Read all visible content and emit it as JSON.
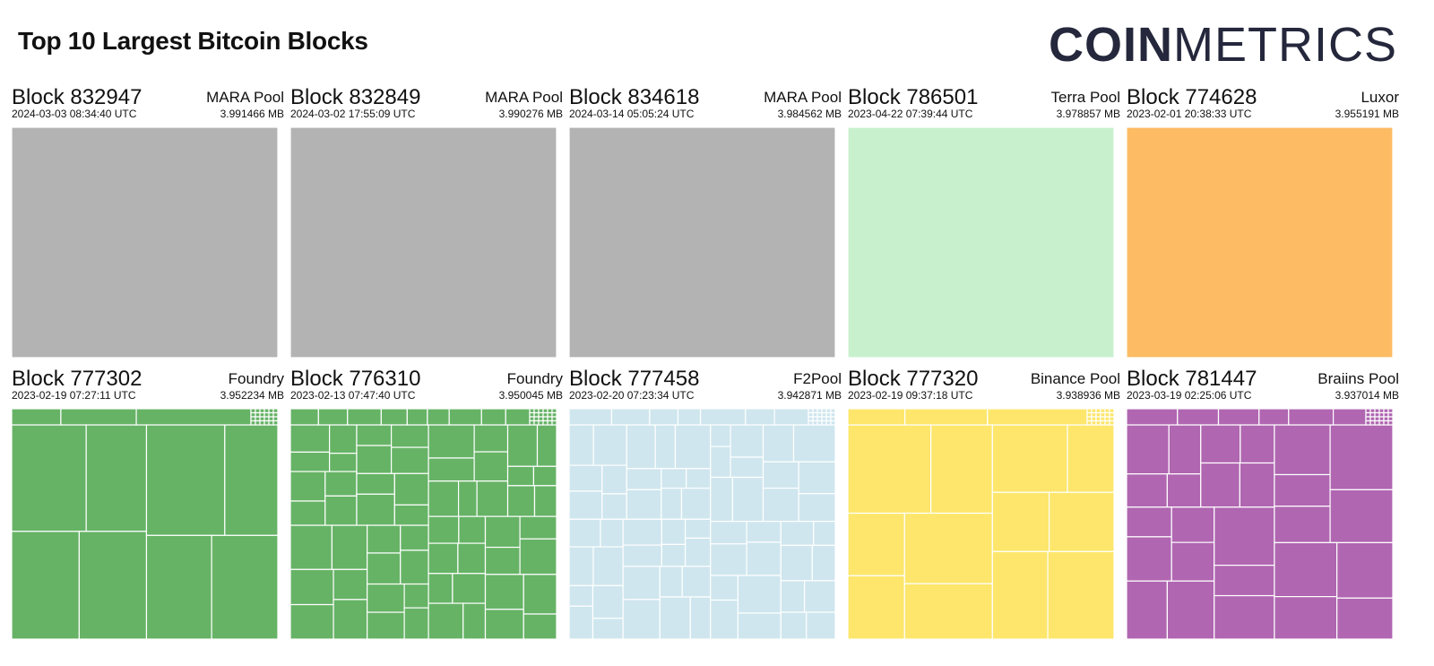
{
  "header": {
    "title": "Top 10 Largest Bitcoin Blocks",
    "logo_bold": "COIN",
    "logo_light": "METRICS"
  },
  "chart_data": {
    "type": "treemap",
    "title": "Top 10 Largest Bitcoin Blocks",
    "blocks": [
      {
        "block": "Block 832947",
        "timestamp": "2024-03-03 08:34:40 UTC",
        "pool": "MARA Pool",
        "size": "3.991466 MB",
        "color": "#b3b3b3",
        "pattern": "single"
      },
      {
        "block": "Block 832849",
        "timestamp": "2024-03-02 17:55:09 UTC",
        "pool": "MARA Pool",
        "size": "3.990276 MB",
        "color": "#b3b3b3",
        "pattern": "single"
      },
      {
        "block": "Block 834618",
        "timestamp": "2024-03-14 05:05:24 UTC",
        "pool": "MARA Pool",
        "size": "3.984562 MB",
        "color": "#b3b3b3",
        "pattern": "single"
      },
      {
        "block": "Block 786501",
        "timestamp": "2023-04-22 07:39:44 UTC",
        "pool": "Terra Pool",
        "size": "3.978857 MB",
        "color": "#c8f0cd",
        "pattern": "single"
      },
      {
        "block": "Block 774628",
        "timestamp": "2023-02-01 20:38:33 UTC",
        "pool": "Luxor",
        "size": "3.955191 MB",
        "color": "#fdbb63",
        "pattern": "single"
      },
      {
        "block": "Block 777302",
        "timestamp": "2023-02-19 07:27:11 UTC",
        "pool": "Foundry",
        "size": "3.952234 MB",
        "color": "#66b366",
        "pattern": "large"
      },
      {
        "block": "Block 776310",
        "timestamp": "2023-02-13 07:47:40 UTC",
        "pool": "Foundry",
        "size": "3.950045 MB",
        "color": "#66b366",
        "pattern": "grid"
      },
      {
        "block": "Block 777458",
        "timestamp": "2023-02-20 07:23:34 UTC",
        "pool": "F2Pool",
        "size": "3.942871 MB",
        "color": "#cfe6ee",
        "pattern": "grid"
      },
      {
        "block": "Block 777320",
        "timestamp": "2023-02-19 09:37:18 UTC",
        "pool": "Binance Pool",
        "size": "3.938936 MB",
        "color": "#fde66b",
        "pattern": "large"
      },
      {
        "block": "Block 781447",
        "timestamp": "2023-03-19 02:25:06 UTC",
        "pool": "Braiins Pool",
        "size": "3.937014 MB",
        "color": "#b066b1",
        "pattern": "medium"
      }
    ]
  }
}
